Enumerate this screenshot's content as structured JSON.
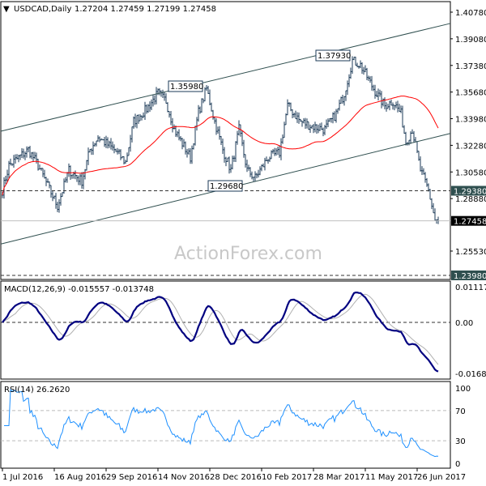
{
  "header": {
    "symbol": "USDCAD,Daily",
    "ohlc": "1.27204 1.27459 1.27199 1.27458"
  },
  "watermark": "ActionForex.com",
  "colors": {
    "bars": "#1b3a57",
    "ma": "#ff0000",
    "macd": "#000080",
    "signal": "#b0b0b0",
    "rsi": "#1e90ff",
    "channel": "#2f4f4f"
  },
  "chart_data": [
    {
      "type": "line",
      "title": "USDCAD,Daily",
      "ylim": [
        1.2398,
        1.4078
      ],
      "yticks": [
        "1.40780",
        "1.39080",
        "1.37380",
        "1.35680",
        "1.33980",
        "1.32280",
        "1.30580",
        "1.28880",
        "1.27180",
        "1.25530"
      ],
      "xticks": [
        "1 Jul 2016",
        "16 Aug 2016",
        "29 Sep 2016",
        "14 Nov 2016",
        "28 Dec 2016",
        "10 Feb 2017",
        "28 Mar 2017",
        "11 May 2017",
        "26 Jun 2017"
      ],
      "bars_per_tick": 32,
      "total_bars": 270,
      "close_anchors": [
        [
          0,
          1.294
        ],
        [
          4,
          1.31
        ],
        [
          16,
          1.32
        ],
        [
          21,
          1.312
        ],
        [
          34,
          1.284
        ],
        [
          41,
          1.307
        ],
        [
          49,
          1.3
        ],
        [
          54,
          1.32
        ],
        [
          59,
          1.328
        ],
        [
          69,
          1.32
        ],
        [
          76,
          1.312
        ],
        [
          81,
          1.338
        ],
        [
          89,
          1.346
        ],
        [
          96,
          1.356
        ],
        [
          101,
          1.351
        ],
        [
          106,
          1.333
        ],
        [
          116,
          1.315
        ],
        [
          121,
          1.344
        ],
        [
          126,
          1.359
        ],
        [
          131,
          1.338
        ],
        [
          136,
          1.32
        ],
        [
          141,
          1.307
        ],
        [
          146,
          1.333
        ],
        [
          151,
          1.307
        ],
        [
          156,
          1.302
        ],
        [
          164,
          1.315
        ],
        [
          171,
          1.318
        ],
        [
          176,
          1.348
        ],
        [
          184,
          1.338
        ],
        [
          191,
          1.335
        ],
        [
          199,
          1.333
        ],
        [
          206,
          1.343
        ],
        [
          211,
          1.356
        ],
        [
          216,
          1.377
        ],
        [
          221,
          1.374
        ],
        [
          229,
          1.359
        ],
        [
          236,
          1.348
        ],
        [
          241,
          1.351
        ],
        [
          246,
          1.343
        ],
        [
          249,
          1.325
        ],
        [
          253,
          1.333
        ],
        [
          258,
          1.307
        ],
        [
          263,
          1.294
        ],
        [
          267,
          1.275
        ],
        [
          269,
          1.2746
        ]
      ],
      "labels": [
        {
          "text": "1.35980",
          "value": 1.3598
        },
        {
          "text": "1.37930",
          "value": 1.3793
        },
        {
          "text": "1.29680",
          "value": 1.2968
        }
      ],
      "hlines": [
        {
          "text": "1.29380",
          "value": 1.2938,
          "style": "dashed"
        },
        {
          "text": "1.23980",
          "value": 1.2398,
          "style": "dashed"
        },
        {
          "text": "1.27458",
          "value": 1.27458,
          "style": "current"
        }
      ],
      "channel": {
        "upper": [
          1.3318,
          1.4006
        ],
        "lower": [
          1.2598,
          1.3304
        ]
      },
      "ma_period": 50
    },
    {
      "type": "line",
      "title": "MACD(12,26,9) -0.015557 -0.013748",
      "ylim": [
        -0.01683,
        0.011179
      ],
      "yticks": [
        "0.011179",
        "0.00",
        "-0.01683"
      ]
    },
    {
      "type": "line",
      "title": "RSI(14) 26.2620",
      "ylim": [
        0,
        100
      ],
      "yticks": [
        "100",
        "70",
        "30",
        "0"
      ],
      "levels": [
        70,
        30
      ]
    }
  ]
}
